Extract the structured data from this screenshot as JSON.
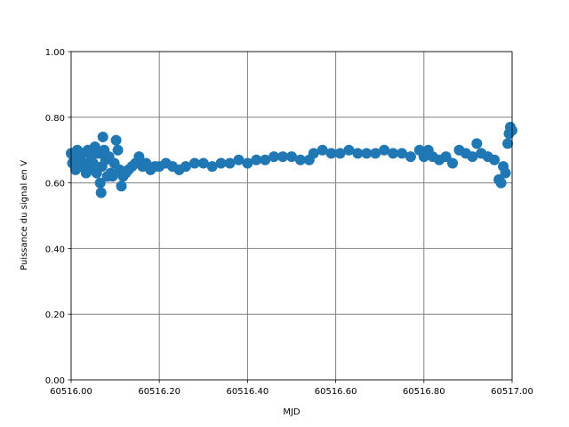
{
  "chart_data": {
    "type": "scatter",
    "xlabel": "MJD",
    "ylabel": "Puissance du signal en V",
    "color": "#1f77b4",
    "grid": true,
    "xlim": [
      60516.0,
      60517.0
    ],
    "xticks": [
      {
        "value": 60516.0,
        "label": "60516.00"
      },
      {
        "value": 60516.2,
        "label": "60516.20"
      },
      {
        "value": 60516.4,
        "label": "60516.40"
      },
      {
        "value": 60516.6,
        "label": "60516.60"
      },
      {
        "value": 60516.8,
        "label": "60516.80"
      },
      {
        "value": 60517.0,
        "label": "60517.00"
      }
    ],
    "ylim": [
      0,
      1
    ],
    "yticks": [
      {
        "value": 0,
        "label": "0.00"
      },
      {
        "value": 0.2,
        "label": "0.20"
      },
      {
        "value": 0.4,
        "label": "0.40"
      },
      {
        "value": 0.6,
        "label": "0.60"
      },
      {
        "value": 0.8,
        "label": "0.80"
      },
      {
        "value": 1,
        "label": "1.00"
      }
    ],
    "x": [
      60516.0,
      60516.003,
      60516.006,
      60516.01,
      60516.014,
      60516.018,
      60516.022,
      60516.026,
      60516.03,
      60516.034,
      60516.038,
      60516.042,
      60516.046,
      60516.05,
      60516.054,
      60516.058,
      60516.062,
      60516.066,
      60516.068,
      60516.07,
      60516.072,
      60516.075,
      60516.078,
      60516.082,
      60516.086,
      60516.09,
      60516.094,
      60516.098,
      60516.102,
      60516.106,
      60516.11,
      60516.114,
      60516.118,
      60516.124,
      60516.13,
      60516.138,
      60516.146,
      60516.154,
      60516.162,
      60516.17,
      60516.18,
      60516.19,
      60516.2,
      60516.215,
      60516.23,
      60516.245,
      60516.26,
      60516.28,
      60516.3,
      60516.32,
      60516.34,
      60516.36,
      60516.38,
      60516.4,
      60516.42,
      60516.44,
      60516.46,
      60516.48,
      60516.5,
      60516.52,
      60516.54,
      60516.55,
      60516.57,
      60516.59,
      60516.61,
      60516.63,
      60516.65,
      60516.67,
      60516.69,
      60516.71,
      60516.73,
      60516.75,
      60516.77,
      60516.79,
      60516.8,
      60516.81,
      60516.82,
      60516.835,
      60516.85,
      60516.865,
      60516.88,
      60516.895,
      60516.91,
      60516.92,
      60516.93,
      60516.945,
      60516.96,
      60516.97,
      60516.975,
      60516.98,
      60516.985,
      60516.99,
      60516.993,
      60516.996,
      60517.0
    ],
    "y": [
      0.69,
      0.66,
      0.68,
      0.64,
      0.7,
      0.67,
      0.65,
      0.69,
      0.66,
      0.63,
      0.7,
      0.64,
      0.68,
      0.66,
      0.71,
      0.63,
      0.69,
      0.6,
      0.57,
      0.65,
      0.74,
      0.7,
      0.67,
      0.62,
      0.68,
      0.63,
      0.62,
      0.66,
      0.73,
      0.7,
      0.64,
      0.59,
      0.62,
      0.63,
      0.64,
      0.65,
      0.66,
      0.68,
      0.65,
      0.66,
      0.64,
      0.65,
      0.65,
      0.66,
      0.65,
      0.64,
      0.65,
      0.66,
      0.66,
      0.65,
      0.66,
      0.66,
      0.67,
      0.66,
      0.67,
      0.67,
      0.68,
      0.68,
      0.68,
      0.67,
      0.67,
      0.69,
      0.7,
      0.69,
      0.69,
      0.7,
      0.69,
      0.69,
      0.69,
      0.7,
      0.69,
      0.69,
      0.68,
      0.7,
      0.68,
      0.7,
      0.68,
      0.67,
      0.68,
      0.66,
      0.7,
      0.69,
      0.68,
      0.72,
      0.69,
      0.68,
      0.67,
      0.61,
      0.6,
      0.65,
      0.63,
      0.72,
      0.75,
      0.77,
      0.76
    ]
  }
}
